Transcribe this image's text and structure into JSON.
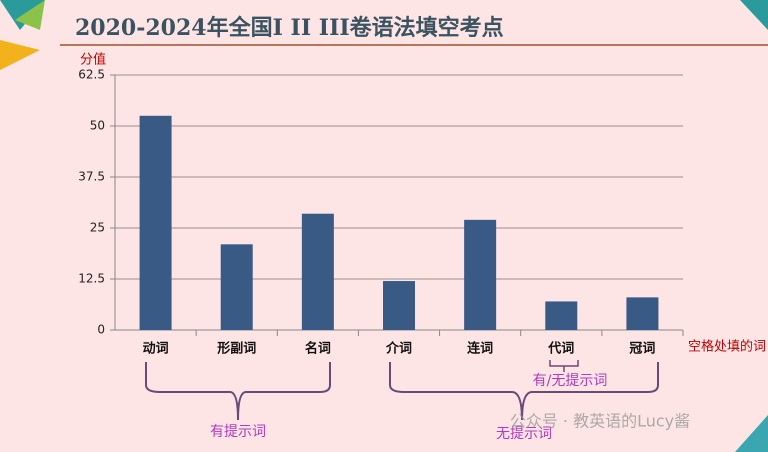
{
  "chart_data": {
    "type": "bar",
    "title": "2020-2024年全国I II III卷语法填空考点",
    "y_label": "分值",
    "x_label": "空格处填的词",
    "categories": [
      "动词",
      "形副词",
      "名词",
      "介词",
      "连词",
      "代词",
      "冠词"
    ],
    "values": [
      52.5,
      21,
      28.5,
      12,
      27,
      7,
      8
    ],
    "color": "#3a5a86",
    "ylim": [
      0,
      62.5
    ],
    "yticks": [
      0,
      12.5,
      25,
      37.5,
      50,
      62.5
    ],
    "grid": true,
    "annotations": [
      "有提示词",
      "无提示词",
      "有/无提示词",
      "公众号 · 教英语的Lucy酱"
    ]
  }
}
